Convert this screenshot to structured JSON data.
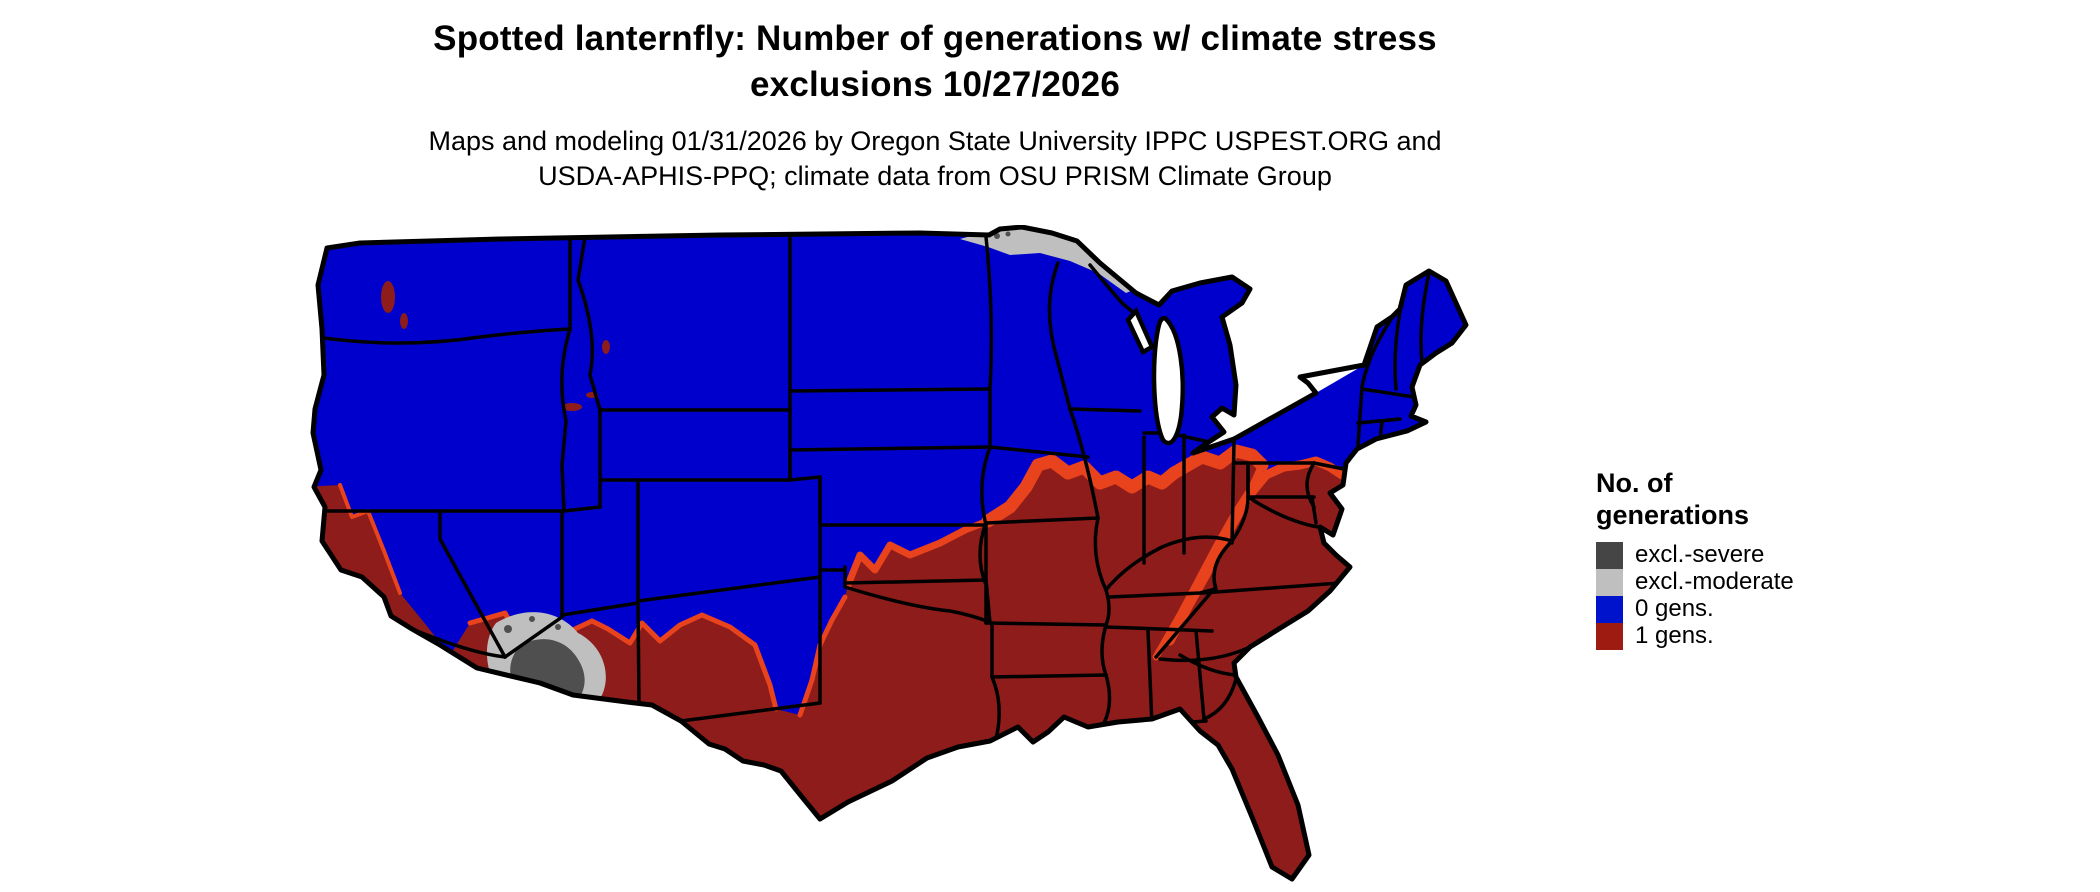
{
  "header": {
    "title_line1": "Spotted lanternfly: Number of generations w/ climate stress",
    "title_line2": "exclusions 10/27/2026",
    "subtitle_line1": "Maps and modeling 01/31/2026 by Oregon State University IPPC USPEST.ORG and",
    "subtitle_line2": "USDA-APHIS-PPQ; climate data from OSU PRISM Climate Group"
  },
  "legend": {
    "title_line1": "No. of",
    "title_line2": "generations",
    "items": [
      {
        "label": "excl.-severe",
        "color": "#454545"
      },
      {
        "label": "excl.-moderate",
        "color": "#bfbfbf"
      },
      {
        "label": "0 gens.",
        "color": "#0013cc"
      },
      {
        "label": "1 gens.",
        "color": "#9e1b11"
      }
    ]
  },
  "palette": {
    "background": "#ffffff",
    "border": "#000000",
    "blue": "#0000cc",
    "red": "#8e1c1a",
    "orange": "#e8431c",
    "gray_dark": "#4f4f4f",
    "gray_light": "#bfbfbf"
  },
  "chart_data": {
    "type": "choropleth-map",
    "region": "Contiguous United States",
    "classes": [
      {
        "label": "excl.-severe",
        "color": "#454545",
        "extent": "southern Arizona desert"
      },
      {
        "label": "excl.-moderate",
        "color": "#bfbfbf",
        "extent": "fringe around southern Arizona; far northern Minnesota"
      },
      {
        "label": "0 gens.",
        "color": "#0000cc",
        "extent": "northern states and mountain West, Appalachian highlands"
      },
      {
        "label": "1 gens.",
        "color": "#8e1c1a",
        "extent": "southern and central US, coastal California, mid-Atlantic coast"
      }
    ],
    "transition_band_color": "#e8431c",
    "state_borders": "black",
    "background": "white"
  }
}
